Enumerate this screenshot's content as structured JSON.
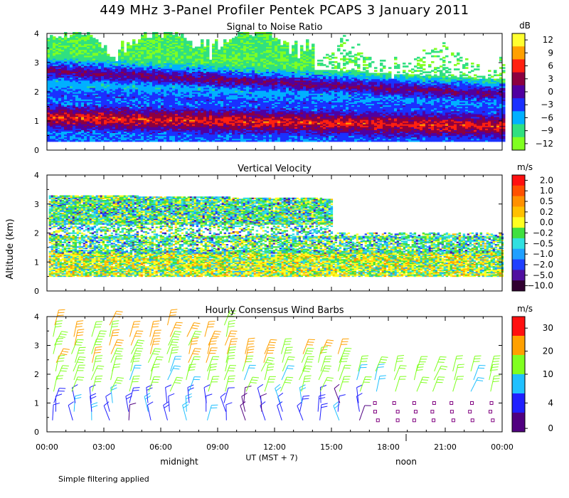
{
  "title": "449 MHz 3-Panel Profiler Pentek PCAPS  3 January 2011",
  "ylabel": "Altitude (km)",
  "xlabel": "UT  (MST + 7)",
  "day_marks": [
    "midnight",
    "noon"
  ],
  "footnote": "Simple filtering applied",
  "x_ticks": [
    "00:00",
    "03:00",
    "06:00",
    "09:00",
    "12:00",
    "15:00",
    "18:00",
    "21:00",
    "00:00"
  ],
  "y_ticks": [
    "0",
    "1",
    "2",
    "3",
    "4"
  ],
  "chart_data": [
    {
      "type": "heatmap",
      "title": "Signal to Noise Ratio",
      "colorbar_unit": "dB",
      "colorbar_labels": [
        "12",
        "9",
        "6",
        "3",
        "0",
        "−3",
        "−6",
        "−9",
        "−12"
      ],
      "colors": [
        "#ffff30",
        "#ffa000",
        "#ff2010",
        "#8c0040",
        "#5000a0",
        "#1a30ff",
        "#00b0ff",
        "#30e080",
        "#80ff20"
      ],
      "xlim": [
        0,
        24
      ],
      "ylim": [
        0,
        4
      ],
      "layers": [
        {
          "name": "low-level maximum",
          "height_km_start": 1.1,
          "height_km_end": 0.8,
          "peak_dB": 6
        },
        {
          "name": "upper layer",
          "height_km_start": 2.7,
          "height_km_end": 1.9,
          "peak_dB": 3
        }
      ]
    },
    {
      "type": "heatmap",
      "title": "Vertical Velocity",
      "colorbar_unit": "m/s",
      "colorbar_labels": [
        "2.0",
        "1.0",
        "0.5",
        "0.2",
        "0.0",
        "−0.2",
        "−0.5",
        "−1.0",
        "−2.0",
        "−5.0",
        "−10.0"
      ],
      "colors": [
        "#ff1010",
        "#ff5000",
        "#ff9000",
        "#ffc000",
        "#ffff20",
        "#40e040",
        "#30e0e0",
        "#20a0ff",
        "#2040ff",
        "#5010a0",
        "#300030"
      ],
      "xlim": [
        0,
        24
      ],
      "ylim": [
        0,
        4
      ]
    },
    {
      "type": "scatter",
      "title": "Hourly Consensus Wind Barbs",
      "colorbar_unit": "m/s",
      "colorbar_labels": [
        "30",
        "20",
        "10",
        "4",
        "0"
      ],
      "colors": [
        "#ff1010",
        "#ffa000",
        "#80ff20",
        "#20c0ff",
        "#2020ff",
        "#500080"
      ],
      "xlim": [
        0,
        24
      ],
      "ylim": [
        0,
        4
      ],
      "heights_km": [
        0.4,
        0.7,
        1.0,
        1.4,
        1.8,
        2.1,
        2.4,
        2.7,
        3.0,
        3.3,
        3.7
      ]
    }
  ]
}
